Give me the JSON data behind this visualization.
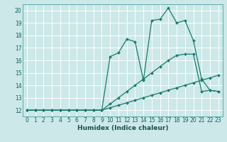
{
  "xlabel": "Humidex (Indice chaleur)",
  "xlim": [
    -0.5,
    23.5
  ],
  "ylim": [
    11.5,
    20.5
  ],
  "xticks": [
    0,
    1,
    2,
    3,
    4,
    5,
    6,
    7,
    8,
    9,
    10,
    11,
    12,
    13,
    14,
    15,
    16,
    17,
    18,
    19,
    20,
    21,
    22,
    23
  ],
  "yticks": [
    12,
    13,
    14,
    15,
    16,
    17,
    18,
    19,
    20
  ],
  "bg_color": "#cce8e8",
  "grid_color": "#ffffff",
  "line_color": "#1a7a6e",
  "line1_x": [
    0,
    1,
    2,
    3,
    4,
    5,
    6,
    7,
    8,
    9,
    10,
    11,
    12,
    13,
    14,
    15,
    16,
    17,
    18,
    19,
    20,
    21,
    22,
    23
  ],
  "line1_y": [
    12,
    12,
    12,
    12,
    12,
    12,
    12,
    12,
    12,
    12,
    12.2,
    12.4,
    12.6,
    12.8,
    13.0,
    13.2,
    13.4,
    13.6,
    13.8,
    14.0,
    14.2,
    14.4,
    14.6,
    14.8
  ],
  "line2_x": [
    0,
    1,
    2,
    3,
    4,
    5,
    6,
    7,
    8,
    9,
    10,
    11,
    12,
    13,
    14,
    15,
    16,
    17,
    18,
    19,
    20,
    21,
    22,
    23
  ],
  "line2_y": [
    12,
    12,
    12,
    12,
    12,
    12,
    12,
    12,
    12,
    12,
    12.5,
    13.0,
    13.5,
    14.0,
    14.5,
    15.0,
    15.5,
    16.0,
    16.4,
    16.5,
    16.5,
    13.5,
    13.6,
    13.5
  ],
  "line3_x": [
    0,
    1,
    2,
    3,
    4,
    5,
    6,
    7,
    8,
    9,
    10,
    11,
    12,
    13,
    14,
    15,
    16,
    17,
    18,
    19,
    20,
    21,
    22,
    23
  ],
  "line3_y": [
    12,
    12,
    12,
    12,
    12,
    12,
    12,
    12,
    12,
    12,
    16.3,
    16.6,
    17.7,
    17.5,
    14.4,
    19.2,
    19.3,
    20.2,
    19.0,
    19.2,
    17.6,
    14.5,
    13.6,
    13.5
  ],
  "marker": "D",
  "markersize": 2.0,
  "linewidth": 0.9,
  "tick_fontsize": 5.5,
  "xlabel_fontsize": 6.5,
  "tick_color": "#1a6060",
  "xlabel_color": "#1a5050"
}
